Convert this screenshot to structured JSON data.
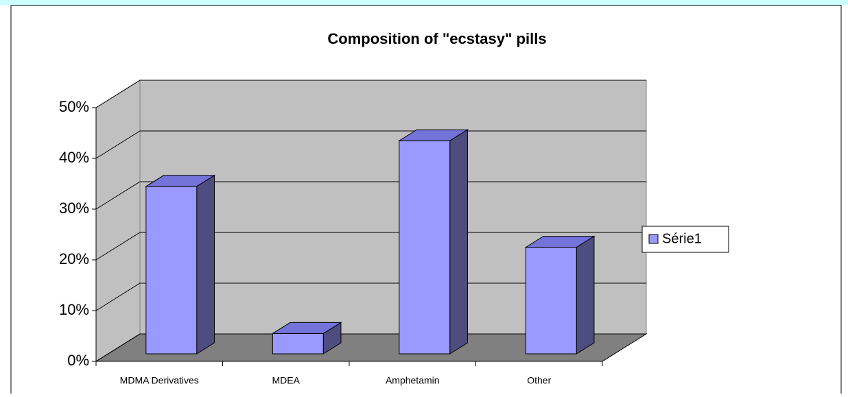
{
  "chart_data": {
    "type": "bar3d",
    "title": "Composition of \"ecstasy\" pills",
    "categories": [
      "MDMA Derivatives",
      "MDEA",
      "Amphetamin",
      "Other"
    ],
    "series": [
      {
        "name": "Série1",
        "color": "#9999ff",
        "values": [
          33,
          4,
          42,
          21
        ]
      }
    ],
    "ylim": [
      0,
      50
    ],
    "yticks": [
      {
        "value": 0,
        "label": "0%"
      },
      {
        "value": 10,
        "label": "10%"
      },
      {
        "value": 20,
        "label": "20%"
      },
      {
        "value": 30,
        "label": "30%"
      },
      {
        "value": 40,
        "label": "40%"
      },
      {
        "value": 50,
        "label": "50%"
      }
    ],
    "grid": true,
    "legend": "right"
  }
}
